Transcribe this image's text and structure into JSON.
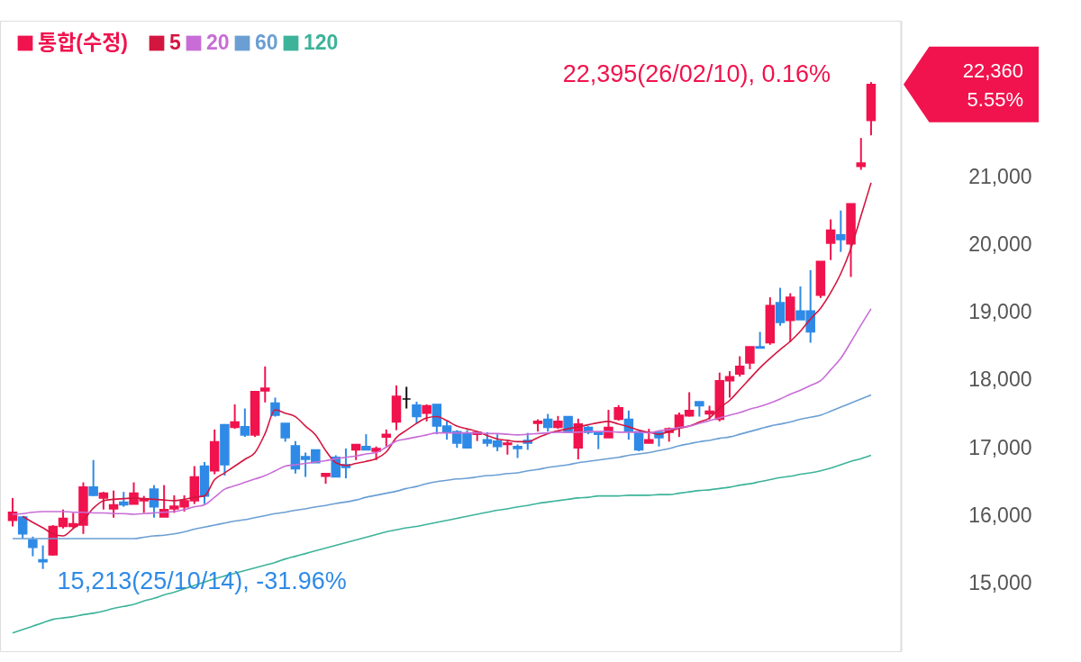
{
  "chart_data": {
    "type": "candlestick",
    "categories": [
      null,
      null,
      null,
      null,
      null,
      null,
      null,
      null,
      null,
      null,
      null,
      null,
      null,
      null,
      null,
      null,
      null,
      null,
      null,
      null,
      null,
      null,
      null,
      null,
      null,
      null,
      null,
      null,
      null,
      null,
      null,
      null,
      null,
      null,
      null,
      null,
      null,
      null,
      null,
      null,
      null,
      null,
      null,
      null,
      null,
      null,
      null,
      null,
      null,
      null,
      null,
      null,
      null,
      null,
      null,
      null,
      null,
      null,
      null,
      null,
      null,
      null,
      null,
      null,
      null,
      null,
      null,
      null,
      null,
      null,
      null,
      null,
      null,
      null,
      null,
      null,
      null,
      null,
      null,
      null,
      null,
      null,
      null,
      null,
      null,
      null
    ],
    "series": [
      {
        "name": "통합(수정)",
        "type": "candlestick",
        "color": "#f0134d",
        "ohlc": [
          [
            15930,
            16260,
            15840,
            16050
          ],
          [
            15980,
            15980,
            15660,
            15730
          ],
          [
            15640,
            15690,
            15400,
            15530
          ],
          [
            15350,
            15560,
            15213,
            15320
          ],
          [
            15420,
            15860,
            15410,
            15840
          ],
          [
            15840,
            16090,
            15810,
            15960
          ],
          [
            15840,
            16040,
            15810,
            15880
          ],
          [
            15860,
            16490,
            15730,
            16420
          ],
          [
            16420,
            16820,
            16290,
            16300
          ],
          [
            16260,
            16350,
            16090,
            16330
          ],
          [
            16100,
            16370,
            15970,
            16160
          ],
          [
            16200,
            16350,
            16130,
            16160
          ],
          [
            16170,
            16490,
            16170,
            16330
          ],
          [
            16220,
            16290,
            16040,
            16250
          ],
          [
            16390,
            16450,
            15970,
            16130
          ],
          [
            15980,
            16450,
            15980,
            16090
          ],
          [
            16100,
            16300,
            16040,
            16140
          ],
          [
            16130,
            16300,
            16060,
            16220
          ],
          [
            16220,
            16730,
            16170,
            16570
          ],
          [
            16730,
            16790,
            16170,
            16290
          ],
          [
            16660,
            17270,
            16610,
            17090
          ],
          [
            17340,
            17350,
            16590,
            16750
          ],
          [
            17300,
            17640,
            17280,
            17380
          ],
          [
            17310,
            17580,
            17160,
            17190
          ],
          [
            17190,
            17830,
            17160,
            17830
          ],
          [
            17840,
            18200,
            17670,
            17880
          ],
          [
            17660,
            17740,
            17460,
            17480
          ],
          [
            17360,
            17360,
            17090,
            17150
          ],
          [
            17030,
            17100,
            16620,
            16690
          ],
          [
            16870,
            16930,
            16570,
            16830
          ],
          [
            16970,
            16970,
            16780,
            16780
          ],
          [
            16580,
            16630,
            16470,
            16620
          ],
          [
            16860,
            16890,
            16570,
            16570
          ],
          [
            16750,
            16990,
            16550,
            16710
          ],
          [
            16970,
            17050,
            16820,
            17050
          ],
          [
            17020,
            17200,
            16970,
            16970
          ],
          [
            16950,
            17020,
            16820,
            16990
          ],
          [
            17160,
            17270,
            17020,
            17200
          ],
          [
            17380,
            17920,
            17260,
            17760
          ],
          [
            17720,
            17900,
            17580,
            17720
          ],
          [
            17630,
            17680,
            17360,
            17460
          ],
          [
            17510,
            17640,
            17390,
            17620
          ],
          [
            17640,
            17640,
            17200,
            17320
          ],
          [
            17320,
            17390,
            17120,
            17240
          ],
          [
            17240,
            17260,
            17000,
            17070
          ],
          [
            17220,
            17260,
            16990,
            17000
          ],
          [
            17200,
            17240,
            17100,
            17230
          ],
          [
            17120,
            17230,
            17020,
            17070
          ],
          [
            17100,
            17200,
            16950,
            17020
          ],
          [
            17050,
            17100,
            16900,
            17070
          ],
          [
            17020,
            17050,
            16850,
            16990
          ],
          [
            17110,
            17220,
            16970,
            17070
          ],
          [
            17360,
            17420,
            17240,
            17390
          ],
          [
            17420,
            17500,
            17240,
            17300
          ],
          [
            17300,
            17470,
            17280,
            17390
          ],
          [
            17460,
            17460,
            17220,
            17230
          ],
          [
            17000,
            17430,
            16830,
            17350
          ],
          [
            17300,
            17320,
            17200,
            17230
          ],
          [
            17230,
            17230,
            16980,
            17200
          ],
          [
            17150,
            17560,
            17150,
            17300
          ],
          [
            17420,
            17630,
            17400,
            17590
          ],
          [
            17420,
            17550,
            17120,
            17240
          ],
          [
            17240,
            17240,
            16950,
            16970
          ],
          [
            17070,
            17280,
            17070,
            17120
          ],
          [
            17230,
            17230,
            17020,
            17150
          ],
          [
            17230,
            17300,
            17090,
            17280
          ],
          [
            17300,
            17520,
            17160,
            17480
          ],
          [
            17470,
            17820,
            17460,
            17550
          ],
          [
            17680,
            17680,
            17460,
            17620
          ],
          [
            17500,
            17620,
            17420,
            17540
          ],
          [
            17420,
            18110,
            17390,
            17990
          ],
          [
            17990,
            18130,
            17740,
            18050
          ],
          [
            18090,
            18350,
            18050,
            18200
          ],
          [
            18250,
            18490,
            18160,
            18490
          ],
          [
            18490,
            18710,
            18470,
            18470
          ],
          [
            18550,
            19220,
            18520,
            19100
          ],
          [
            19140,
            19360,
            18800,
            18850
          ],
          [
            18880,
            19280,
            18560,
            19220
          ],
          [
            19020,
            19380,
            18890,
            18890
          ],
          [
            19020,
            19620,
            18550,
            18710
          ],
          [
            19250,
            19750,
            19210,
            19750
          ],
          [
            20020,
            20370,
            19770,
            20210
          ],
          [
            20140,
            20500,
            19890,
            20070
          ],
          [
            20010,
            20600,
            19520,
            20600
          ],
          [
            21150,
            21570,
            21100,
            21200
          ],
          [
            21830,
            22395,
            21610,
            22360
          ]
        ],
        "colors": [
          "#f0134d",
          "#2e8ae6",
          "#2e8ae6",
          "#2e8ae6",
          "#f0134d",
          "#f0134d",
          "#f0134d",
          "#f0134d",
          "#2e8ae6",
          "#f0134d",
          "#f0134d",
          "#2e8ae6",
          "#f0134d",
          "#f0134d",
          "#2e8ae6",
          "#f0134d",
          "#f0134d",
          "#f0134d",
          "#f0134d",
          "#2e8ae6",
          "#f0134d",
          "#2e8ae6",
          "#f0134d",
          "#2e8ae6",
          "#f0134d",
          "#f0134d",
          "#2e8ae6",
          "#2e8ae6",
          "#2e8ae6",
          "#2e8ae6",
          "#2e8ae6",
          "#f0134d",
          "#2e8ae6",
          "#2e8ae6",
          "#f0134d",
          "#2e8ae6",
          "#f0134d",
          "#f0134d",
          "#f0134d",
          "#111111",
          "#2e8ae6",
          "#f0134d",
          "#2e8ae6",
          "#2e8ae6",
          "#2e8ae6",
          "#2e8ae6",
          "#f0134d",
          "#2e8ae6",
          "#2e8ae6",
          "#f0134d",
          "#2e8ae6",
          "#2e8ae6",
          "#f0134d",
          "#2e8ae6",
          "#f0134d",
          "#2e8ae6",
          "#f0134d",
          "#2e8ae6",
          "#2e8ae6",
          "#f0134d",
          "#f0134d",
          "#2e8ae6",
          "#2e8ae6",
          "#f0134d",
          "#2e8ae6",
          "#f0134d",
          "#f0134d",
          "#f0134d",
          "#2e8ae6",
          "#f0134d",
          "#f0134d",
          "#f0134d",
          "#f0134d",
          "#f0134d",
          "#2e8ae6",
          "#f0134d",
          "#2e8ae6",
          "#f0134d",
          "#2e8ae6",
          "#2e8ae6",
          "#f0134d",
          "#f0134d",
          "#2e8ae6",
          "#f0134d",
          "#f0134d",
          "#f0134d"
        ]
      },
      {
        "name": "5",
        "type": "line",
        "color": "#d3163f",
        "values": [
          null,
          15990,
          15900,
          15820,
          15730,
          15700,
          15810,
          15930,
          16110,
          16220,
          16240,
          16250,
          16260,
          16250,
          16240,
          16230,
          16220,
          16240,
          16270,
          16290,
          16530,
          16630,
          16730,
          16830,
          16930,
          17210,
          17560,
          17510,
          17460,
          17320,
          17190,
          16960,
          16780,
          16740,
          16770,
          16800,
          16840,
          16940,
          17150,
          17260,
          17360,
          17440,
          17460,
          17400,
          17320,
          17280,
          17240,
          17180,
          17130,
          17110,
          17090,
          17090,
          17150,
          17210,
          17250,
          17280,
          17310,
          17340,
          17370,
          17390,
          17350,
          17310,
          17260,
          17230,
          17200,
          17240,
          17290,
          17320,
          17380,
          17440,
          17590,
          17700,
          17860,
          18020,
          18180,
          18320,
          18450,
          18570,
          18720,
          18900,
          19060,
          19290,
          19570,
          19940,
          20420,
          20910
        ]
      },
      {
        "name": "20",
        "type": "line",
        "color": "#c86dd7",
        "values": [
          16020,
          16030,
          16050,
          16060,
          16060,
          16060,
          16050,
          16050,
          16040,
          16040,
          16030,
          16030,
          16020,
          16030,
          16040,
          16050,
          16060,
          16090,
          16130,
          16160,
          16270,
          16390,
          16440,
          16490,
          16540,
          16590,
          16660,
          16730,
          16750,
          16770,
          16790,
          16810,
          16840,
          16860,
          16880,
          16910,
          16930,
          17010,
          17100,
          17130,
          17160,
          17190,
          17220,
          17220,
          17220,
          17220,
          17220,
          17210,
          17210,
          17200,
          17190,
          17200,
          17210,
          17220,
          17230,
          17230,
          17230,
          17240,
          17240,
          17240,
          17230,
          17230,
          17230,
          17220,
          17250,
          17270,
          17300,
          17320,
          17360,
          17400,
          17440,
          17480,
          17520,
          17570,
          17610,
          17660,
          17720,
          17790,
          17850,
          17920,
          17990,
          18150,
          18320,
          18560,
          18810,
          19050
        ]
      },
      {
        "name": "60",
        "type": "line",
        "color": "#6b9fd4",
        "values": [
          15660,
          15660,
          15660,
          15660,
          15660,
          15660,
          15660,
          15660,
          15660,
          15660,
          15660,
          15660,
          15660,
          15680,
          15700,
          15710,
          15730,
          15760,
          15800,
          15830,
          15860,
          15890,
          15920,
          15940,
          15970,
          16000,
          16030,
          16050,
          16080,
          16100,
          16130,
          16150,
          16180,
          16200,
          16230,
          16270,
          16300,
          16330,
          16360,
          16400,
          16430,
          16470,
          16500,
          16520,
          16540,
          16550,
          16570,
          16590,
          16600,
          16620,
          16630,
          16660,
          16680,
          16710,
          16730,
          16750,
          16780,
          16800,
          16820,
          16840,
          16860,
          16890,
          16910,
          16930,
          16960,
          16990,
          17030,
          17060,
          17090,
          17110,
          17140,
          17160,
          17200,
          17240,
          17280,
          17320,
          17350,
          17380,
          17420,
          17450,
          17480,
          17540,
          17600,
          17660,
          17720,
          17780
        ]
      },
      {
        "name": "120",
        "type": "line",
        "color": "#3db39a",
        "values": [
          14270,
          14320,
          14370,
          14420,
          14470,
          14490,
          14510,
          14540,
          14560,
          14590,
          14630,
          14660,
          14690,
          14740,
          14780,
          14830,
          14870,
          14920,
          14970,
          15020,
          15070,
          15110,
          15150,
          15190,
          15230,
          15270,
          15310,
          15360,
          15400,
          15440,
          15480,
          15520,
          15560,
          15600,
          15640,
          15680,
          15720,
          15760,
          15790,
          15820,
          15840,
          15870,
          15900,
          15930,
          15960,
          15990,
          16020,
          16050,
          16080,
          16100,
          16130,
          16150,
          16180,
          16200,
          16220,
          16240,
          16260,
          16270,
          16290,
          16290,
          16290,
          16300,
          16300,
          16300,
          16310,
          16310,
          16330,
          16350,
          16370,
          16380,
          16400,
          16420,
          16450,
          16470,
          16500,
          16530,
          16560,
          16580,
          16610,
          16630,
          16660,
          16700,
          16750,
          16800,
          16840,
          16890
        ]
      }
    ],
    "ylim": [
      14000,
      23300
    ],
    "yticks": [
      {
        "value": 15000,
        "label": "15,000"
      },
      {
        "value": 16000,
        "label": "16,000"
      },
      {
        "value": 17000,
        "label": "17,000"
      },
      {
        "value": 18000,
        "label": "18,000"
      },
      {
        "value": 19000,
        "label": "19,000"
      },
      {
        "value": 20000,
        "label": "20,000"
      },
      {
        "value": 21000,
        "label": "21,000"
      }
    ],
    "annotations": [
      "22,395(26/02/10), 0.16%",
      "15,213(25/10/14), -31.96%",
      "22,360",
      "5.55%"
    ],
    "legend": "top left",
    "grid": false
  }
}
